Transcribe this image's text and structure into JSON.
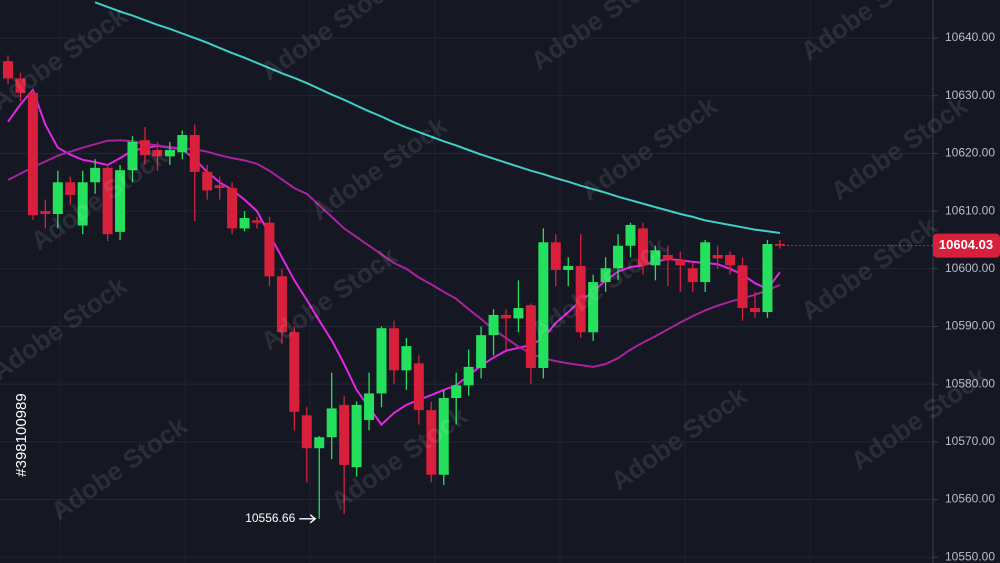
{
  "chart_data": {
    "type": "candlestick",
    "ylim": [
      10549,
      10646.6
    ],
    "yticks": [
      {
        "value": 10550,
        "label": "10550.00"
      },
      {
        "value": 10560,
        "label": "10560.00"
      },
      {
        "value": 10570,
        "label": "10570.00"
      },
      {
        "value": 10580,
        "label": "10580.00"
      },
      {
        "value": 10590,
        "label": "10590.00"
      },
      {
        "value": 10600,
        "label": "10600.00"
      },
      {
        "value": 10610,
        "label": "10610.00"
      },
      {
        "value": 10620,
        "label": "10620.00"
      },
      {
        "value": 10630,
        "label": "10630.00"
      },
      {
        "value": 10640,
        "label": "10640.00"
      }
    ],
    "grid": true,
    "up_color": "#25e05c",
    "down_color": "#d81f3c",
    "open": [
      10636,
      10633,
      10630.5,
      10610,
      10609.5,
      10615,
      10607.5,
      10615,
      10617.5,
      10606.4,
      10617.1,
      10622.3,
      10620.6,
      10619.5,
      10620.2,
      10623.2,
      10616.8,
      10614.5,
      10614,
      10607,
      10608.4,
      10608,
      10598.7,
      10589,
      10574.6,
      10568.9,
      10570.8,
      10576.4,
      10565.6,
      10573.8,
      10578.4,
      10589.7,
      10582.4,
      10583.6,
      10575.5,
      10564.3,
      10577.6,
      10579.8,
      10582.8,
      10588.5,
      10592,
      10591.4,
      10593.7,
      10582.8,
      10604.6,
      10599.8,
      10600.5,
      10589,
      10597.7,
      10600.1,
      10604,
      10607,
      10600.6,
      10602.4,
      10601.5,
      10600.1,
      10597.7,
      10602.4,
      10602.4,
      10600.6,
      10593.2,
      10592.5,
      10604.3
    ],
    "high": [
      10637,
      10634,
      10631,
      10612,
      10617,
      10616,
      10617,
      10619,
      10618,
      10618,
      10623,
      10624.6,
      10622,
      10622,
      10624,
      10625,
      10618,
      10616,
      10615,
      10610,
      10609,
      10609,
      10600,
      10590,
      10576,
      10571,
      10582,
      10578,
      10577,
      10582,
      10590,
      10591,
      10588,
      10585,
      10577,
      10579,
      10582,
      10586,
      10590,
      10593,
      10593,
      10598,
      10594,
      10607,
      10606,
      10602,
      10606,
      10599,
      10602,
      10606,
      10608,
      10608,
      10604,
      10604,
      10603,
      10601,
      10605,
      10604,
      10603,
      10602,
      10596,
      10605,
      10605
    ],
    "low": [
      10632,
      10629,
      10608.5,
      10607,
      10607,
      10611,
      10606,
      10613,
      10604.8,
      10605,
      10615,
      10618,
      10617,
      10618,
      10619,
      10608.3,
      10612,
      10612,
      10606,
      10606.5,
      10607,
      10597,
      10587,
      10572,
      10563,
      10556.66,
      10567,
      10557.5,
      10564,
      10572,
      10576,
      10580,
      10579,
      10573,
      10563,
      10562.5,
      10573,
      10578,
      10581,
      10585,
      10586,
      10589,
      10580,
      10581,
      10597,
      10597,
      10588,
      10587.5,
      10596,
      10598,
      10602,
      10599,
      10598,
      10597,
      10596,
      10596,
      10596,
      10600,
      10599,
      10591,
      10591.5,
      10591.5,
      10603.5
    ],
    "close": [
      10633,
      10630.5,
      10609.3,
      10609.5,
      10615,
      10612.8,
      10615,
      10617.5,
      10606,
      10617.1,
      10622,
      10619.7,
      10619.5,
      10620.6,
      10623.2,
      10616.8,
      10613.6,
      10614,
      10607,
      10608.8,
      10608,
      10598.7,
      10589,
      10575.2,
      10568.9,
      10570.8,
      10575.8,
      10566,
      10576.4,
      10578.4,
      10589.7,
      10582.4,
      10586.6,
      10575.5,
      10564.3,
      10577.6,
      10579.8,
      10583,
      10588.5,
      10592,
      10591.4,
      10593.2,
      10582.8,
      10604.6,
      10599.8,
      10600.5,
      10589,
      10597.7,
      10600.1,
      10604,
      10607.6,
      10600.6,
      10603.2,
      10601.5,
      10600.6,
      10597.7,
      10604.6,
      10601.8,
      10600.6,
      10593.2,
      10592.5,
      10604.3,
      10604.03
    ],
    "overlays": [
      {
        "color": "#3fcfc6",
        "values": [
          null,
          null,
          null,
          null,
          null,
          null,
          null,
          10646.2,
          10645.4,
          10644.6,
          10643.9,
          10643.1,
          10642.3,
          10641.6,
          10640.8,
          10640,
          10639.2,
          10638.3,
          10637.4,
          10636.6,
          10635.7,
          10634.8,
          10633.9,
          10633.1,
          10632.2,
          10631.2,
          10630.2,
          10629.3,
          10628.3,
          10627.3,
          10626.4,
          10625.4,
          10624.5,
          10623.7,
          10622.9,
          10622.1,
          10621.4,
          10620.6,
          10619.8,
          10619.1,
          10618.4,
          10617.7,
          10617,
          10616.4,
          10615.7,
          10615.1,
          10614.4,
          10613.8,
          10613.2,
          10612.5,
          10611.9,
          10611.3,
          10610.7,
          10610.1,
          10609.5,
          10609,
          10608.4,
          10608,
          10607.6,
          10607.2,
          10606.8,
          10606.5,
          10606.2
        ]
      },
      {
        "color": "#e126e6",
        "values": [
          10625.5,
          10628.5,
          10631,
          10625,
          10621,
          10619.8,
          10618.9,
          10618.5,
          10618,
          10619.2,
          10620.5,
          10620.9,
          10621.3,
          10621,
          10620.7,
          10619,
          10616.8,
          10615,
          10613.7,
          10612,
          10610,
          10606,
          10602,
          10598,
          10594.6,
          10591,
          10587.6,
          10583.5,
          10579,
          10576,
          10573,
          10575,
          10576.4,
          10577.3,
          10578.1,
          10579,
          10579.8,
          10581.5,
          10583.2,
          10584.6,
          10585.8,
          10586.3,
          10586.8,
          10588,
          10590.6,
          10592.5,
          10594.5,
          10596,
          10598,
          10599.5,
          10600.3,
          10600.6,
          10601.2,
          10601.7,
          10601.5,
          10601.2,
          10601,
          10600.8,
          10600,
          10599,
          10597.5,
          10596.5,
          10599.4
        ]
      },
      {
        "color": "#a9229f",
        "values": [
          10615.4,
          10616.5,
          10617.6,
          10618.6,
          10619.6,
          10620.3,
          10621,
          10621.6,
          10622.2,
          10622.3,
          10622.1,
          10621.7,
          10621.4,
          10621.1,
          10620.9,
          10620.7,
          10620.3,
          10619.7,
          10619.2,
          10618.8,
          10618.2,
          10617,
          10615.5,
          10614,
          10613,
          10611,
          10609,
          10607,
          10605.5,
          10604,
          10602.5,
          10601,
          10600,
          10598.5,
          10597.3,
          10596,
          10594.8,
          10593,
          10591.3,
          10589.5,
          10588,
          10586.5,
          10585.3,
          10584.5,
          10584,
          10583.6,
          10583.3,
          10583,
          10583.5,
          10584.5,
          10586,
          10587.2,
          10588.3,
          10589.5,
          10590.7,
          10591.8,
          10592.8,
          10593.6,
          10594.3,
          10594.9,
          10595.5,
          10596.3,
          10597.2
        ]
      }
    ],
    "last_price": 10604.03,
    "low_annotation": 10556.66,
    "watermark": "Adobe Stock",
    "stock_id": "#398100989"
  }
}
